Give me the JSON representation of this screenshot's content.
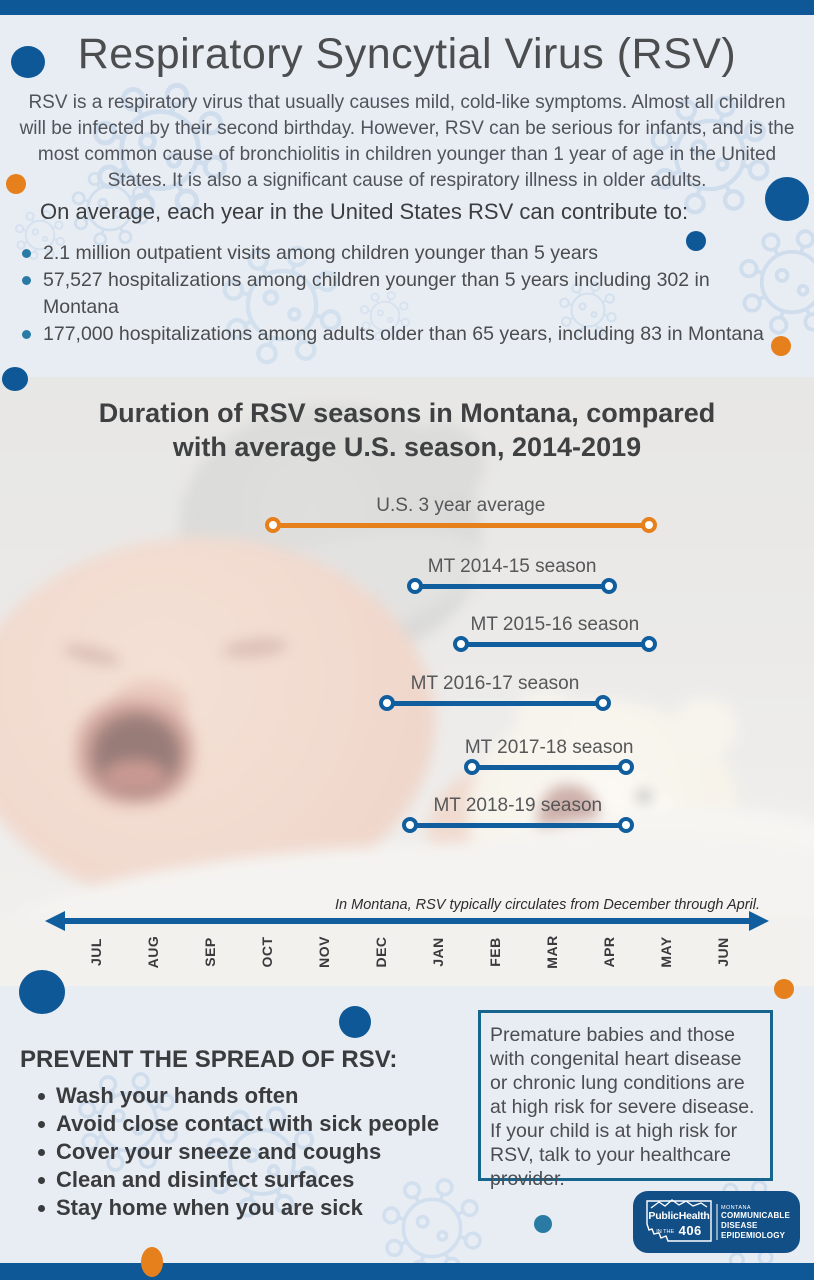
{
  "colors": {
    "dark_blue": "#0e5897",
    "orange": "#e5801c",
    "teal": "#2a7ba3",
    "chart_blue": "#115e9e",
    "box_border": "#17648c",
    "logo_blue": "#134f87"
  },
  "header": {
    "title": "Respiratory Syncytial Virus (RSV)",
    "intro": "RSV is a respiratory virus that usually causes mild, cold-like symptoms. Almost all children will be infected by their second birthday. However, RSV can be serious for infants, and is the most common cause of bronchiolitis in children younger than 1 year of age in the United States. It is also a significant cause of respiratory illness in older adults."
  },
  "stats": {
    "heading": "On average, each year in the United States RSV can contribute to:",
    "items": [
      "2.1 million outpatient visits among children younger than 5 years",
      "57,527 hospitalizations among children younger than 5 years including 302 in Montana",
      "177,000 hospitalizations among adults older than 65 years, including 83 in Montana"
    ]
  },
  "chart_data": {
    "type": "timeline",
    "title": [
      "Duration of RSV seasons in Montana, compared",
      "with average U.S. season, 2014-2019"
    ],
    "x_axis": {
      "months": [
        "JUL",
        "AUG",
        "SEP",
        "OCT",
        "NOV",
        "DEC",
        "JAN",
        "FEB",
        "MAR",
        "APR",
        "MAY",
        "JUN"
      ],
      "note": "In Montana, RSV typically circulates from December through April."
    },
    "series": [
      {
        "label": "U.S. 3 year average",
        "color": "#e5801c",
        "start_month": 3.1,
        "end_month": 9.7
      },
      {
        "label": "MT 2014-15 season",
        "color": "#115e9e",
        "start_month": 5.6,
        "end_month": 9.0
      },
      {
        "label": "MT 2015-16 season",
        "color": "#115e9e",
        "start_month": 6.4,
        "end_month": 9.7
      },
      {
        "label": "MT 2016-17 season",
        "color": "#115e9e",
        "start_month": 5.1,
        "end_month": 8.9
      },
      {
        "label": "MT 2017-18 season",
        "color": "#115e9e",
        "start_month": 6.6,
        "end_month": 9.3
      },
      {
        "label": "MT 2018-19 season",
        "color": "#115e9e",
        "start_month": 5.5,
        "end_month": 9.3
      }
    ]
  },
  "prevention": {
    "heading": "PREVENT THE SPREAD OF RSV:",
    "items": [
      "Wash your hands often",
      "Avoid close contact with sick people",
      "Cover your sneeze and coughs",
      "Clean and disinfect surfaces",
      "Stay home when you are sick"
    ]
  },
  "risk_box": {
    "text": "Premature babies and those with congenital heart disease or chronic lung conditions are at high risk for severe disease. If your child is at high risk for RSV, talk to your healthcare provider."
  },
  "logo": {
    "public_health": "PublicHealth",
    "in_the": "IN THE",
    "number": "406",
    "org_small": "MONTANA",
    "org_line1": "COMMUNICABLE",
    "org_line2": "DISEASE EPIDEMIOLOGY"
  }
}
